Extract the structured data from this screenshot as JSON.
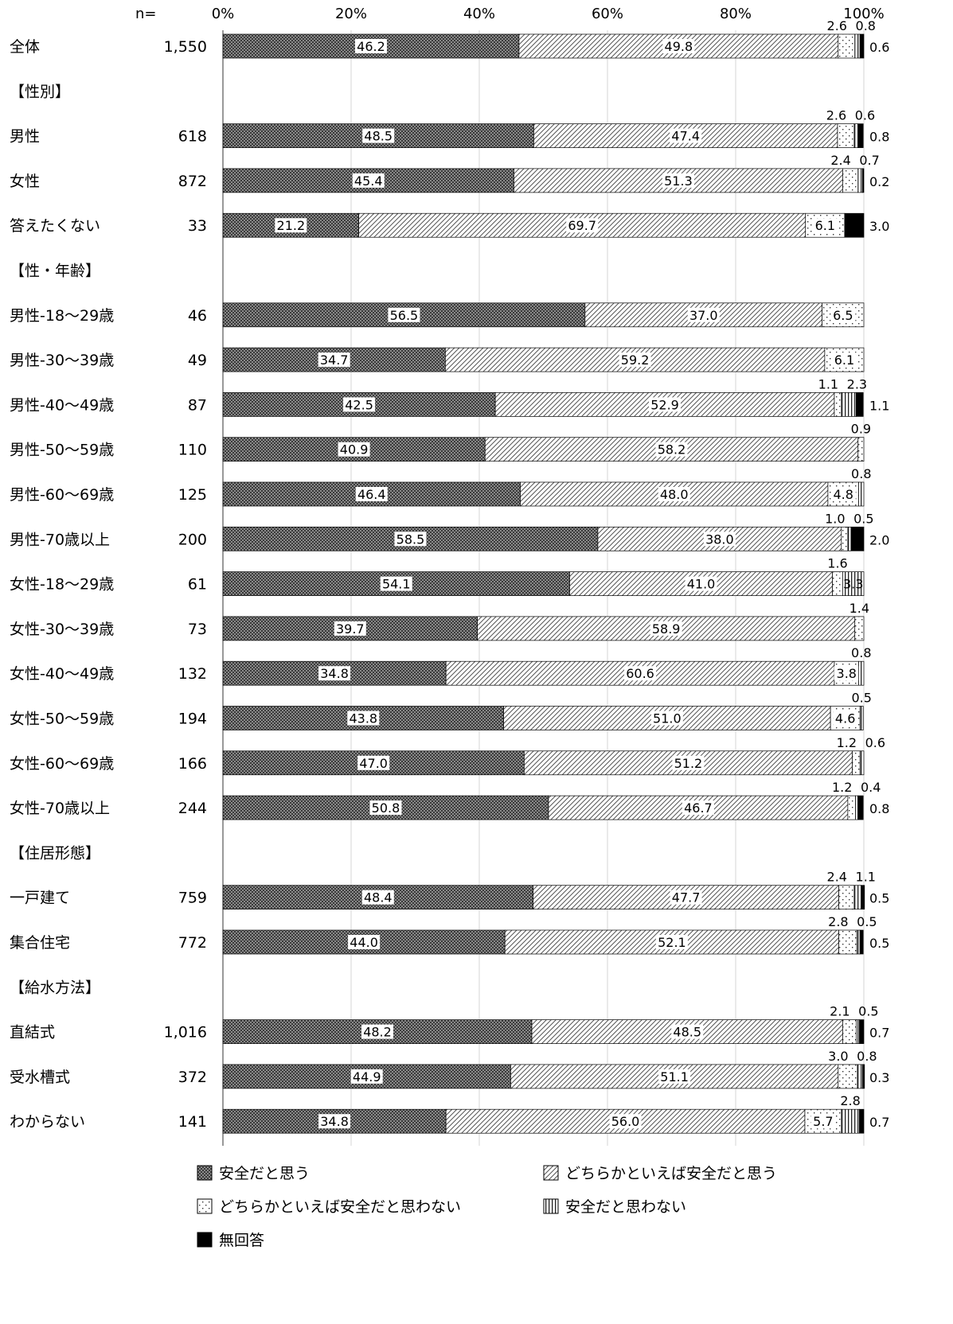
{
  "chart_data": {
    "type": "bar",
    "orientation": "horizontal-stacked-100",
    "n_header": "n=",
    "x_ticks": [
      "0%",
      "20%",
      "40%",
      "60%",
      "80%",
      "100%"
    ],
    "xlim": [
      0,
      100
    ],
    "grid": true,
    "legend_position": "bottom",
    "series": [
      {
        "name": "安全だと思う",
        "color": "#707070",
        "pattern": "dense"
      },
      {
        "name": "どちらかといえば安全だと思う",
        "color": "#ffffff",
        "pattern": "diagonal"
      },
      {
        "name": "どちらかといえば安全だと思わない",
        "color": "#ffffff",
        "pattern": "dots"
      },
      {
        "name": "安全だと思わない",
        "color": "#ffffff",
        "pattern": "vertical"
      },
      {
        "name": "無回答",
        "color": "#000000",
        "pattern": "solid"
      }
    ],
    "rows": [
      {
        "label": "全体",
        "n": "1,550",
        "values": [
          46.2,
          49.8,
          2.6,
          0.8,
          0.6
        ]
      },
      {
        "section": "【性別】"
      },
      {
        "label": "男性",
        "n": "618",
        "values": [
          48.5,
          47.4,
          2.6,
          0.6,
          0.8
        ]
      },
      {
        "label": "女性",
        "n": "872",
        "values": [
          45.4,
          51.3,
          2.4,
          0.7,
          0.2
        ]
      },
      {
        "label": "答えたくない",
        "n": "33",
        "values": [
          21.2,
          69.7,
          6.1,
          0,
          3.0
        ]
      },
      {
        "section": "【性・年齢】"
      },
      {
        "label": "男性-18～29歳",
        "n": "46",
        "values": [
          56.5,
          37.0,
          6.5,
          0,
          0
        ]
      },
      {
        "label": "男性-30～39歳",
        "n": "49",
        "values": [
          34.7,
          59.2,
          6.1,
          0,
          0
        ]
      },
      {
        "label": "男性-40～49歳",
        "n": "87",
        "values": [
          42.5,
          52.9,
          1.1,
          2.3,
          1.1
        ]
      },
      {
        "label": "男性-50～59歳",
        "n": "110",
        "values": [
          40.9,
          58.2,
          0.9,
          0,
          0
        ]
      },
      {
        "label": "男性-60～69歳",
        "n": "125",
        "values": [
          46.4,
          48.0,
          4.8,
          0.8,
          0
        ]
      },
      {
        "label": "男性-70歳以上",
        "n": "200",
        "values": [
          58.5,
          38.0,
          1.0,
          0.5,
          2.0
        ]
      },
      {
        "label": "女性-18～29歳",
        "n": "61",
        "values": [
          54.1,
          41.0,
          1.6,
          3.3,
          0
        ]
      },
      {
        "label": "女性-30～39歳",
        "n": "73",
        "values": [
          39.7,
          58.9,
          1.4,
          0,
          0
        ]
      },
      {
        "label": "女性-40～49歳",
        "n": "132",
        "values": [
          34.8,
          60.6,
          3.8,
          0.8,
          0
        ]
      },
      {
        "label": "女性-50～59歳",
        "n": "194",
        "values": [
          43.8,
          51.0,
          4.6,
          0.5,
          0
        ]
      },
      {
        "label": "女性-60～69歳",
        "n": "166",
        "values": [
          47.0,
          51.2,
          1.2,
          0.6,
          0
        ]
      },
      {
        "label": "女性-70歳以上",
        "n": "244",
        "values": [
          50.8,
          46.7,
          1.2,
          0.4,
          0.8
        ]
      },
      {
        "section": "【住居形態】"
      },
      {
        "label": "一戸建て",
        "n": "759",
        "values": [
          48.4,
          47.7,
          2.4,
          1.1,
          0.5
        ]
      },
      {
        "label": "集合住宅",
        "n": "772",
        "values": [
          44.0,
          52.1,
          2.8,
          0.5,
          0.5
        ]
      },
      {
        "section": "【給水方法】"
      },
      {
        "label": "直結式",
        "n": "1,016",
        "values": [
          48.2,
          48.5,
          2.1,
          0.5,
          0.7
        ]
      },
      {
        "label": "受水槽式",
        "n": "372",
        "values": [
          44.9,
          51.1,
          3.0,
          0.8,
          0.3
        ]
      },
      {
        "label": "わからない",
        "n": "141",
        "values": [
          34.8,
          56.0,
          5.7,
          2.8,
          0.7
        ]
      }
    ]
  }
}
